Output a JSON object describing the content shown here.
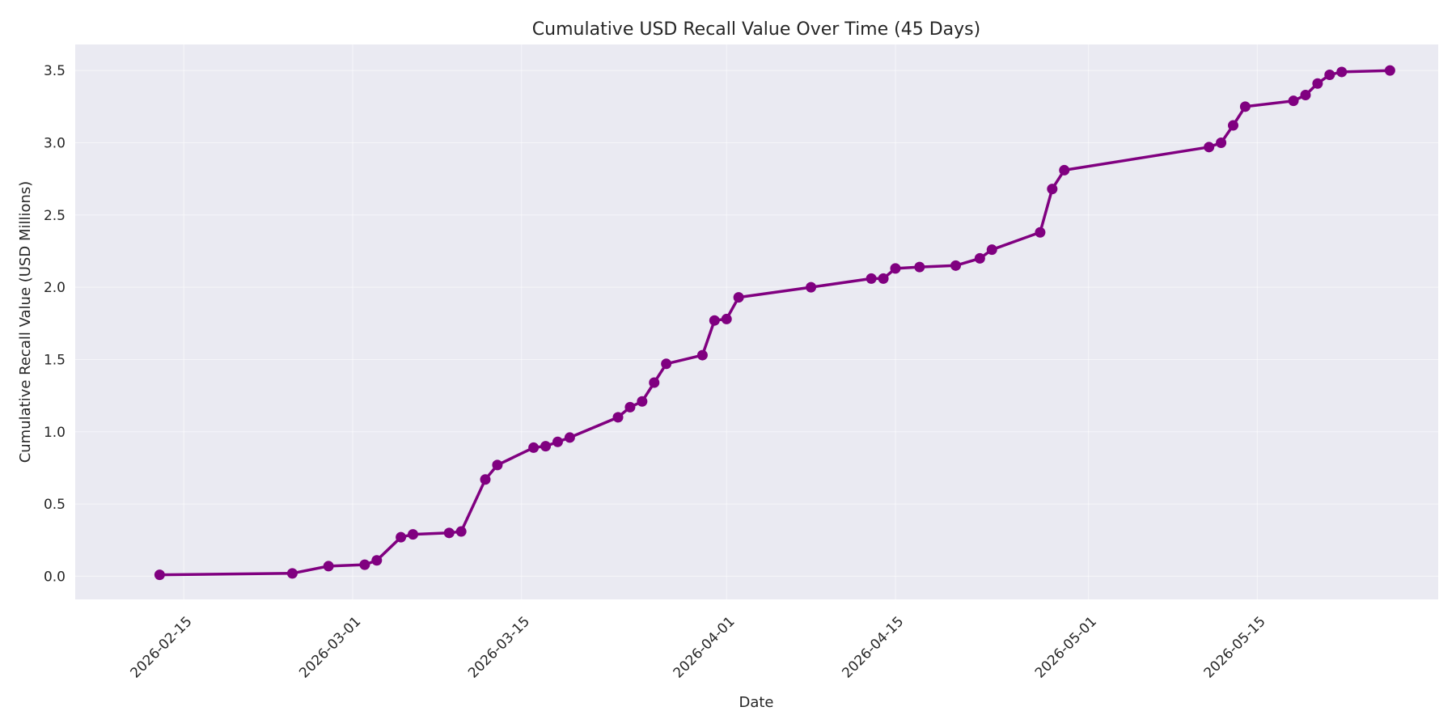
{
  "colors": {
    "series": "#800080",
    "plot_background": "#eaeaf2",
    "grid": "#ffffff",
    "text": "#262626"
  },
  "chart_data": {
    "type": "line",
    "title": "Cumulative USD Recall Value Over Time (45 Days)",
    "xlabel": "Date",
    "ylabel": "Cumulative Recall Value (USD Millions)",
    "grid": true,
    "legend": "none",
    "xlim": [
      "2026-02-06",
      "2026-05-30"
    ],
    "ylim": [
      -0.16,
      3.68
    ],
    "x_ticks": [
      "2026-02-15",
      "2026-03-01",
      "2026-03-15",
      "2026-04-01",
      "2026-04-15",
      "2026-05-01",
      "2026-05-15"
    ],
    "y_ticks": [
      0.0,
      0.5,
      1.0,
      1.5,
      2.0,
      2.5,
      3.0,
      3.5
    ],
    "y_tick_labels": [
      "0.0",
      "0.5",
      "1.0",
      "1.5",
      "2.0",
      "2.5",
      "3.0",
      "3.5"
    ],
    "series": [
      {
        "x": [
          "2026-02-13",
          "2026-02-24",
          "2026-02-27",
          "2026-03-02",
          "2026-03-03",
          "2026-03-05",
          "2026-03-06",
          "2026-03-09",
          "2026-03-10",
          "2026-03-12",
          "2026-03-13",
          "2026-03-16",
          "2026-03-17",
          "2026-03-18",
          "2026-03-19",
          "2026-03-23",
          "2026-03-24",
          "2026-03-25",
          "2026-03-26",
          "2026-03-27",
          "2026-03-30",
          "2026-03-31",
          "2026-04-01",
          "2026-04-02",
          "2026-04-08",
          "2026-04-13",
          "2026-04-14",
          "2026-04-15",
          "2026-04-17",
          "2026-04-20",
          "2026-04-22",
          "2026-04-23",
          "2026-04-27",
          "2026-04-28",
          "2026-04-29",
          "2026-05-11",
          "2026-05-12",
          "2026-05-13",
          "2026-05-14",
          "2026-05-18",
          "2026-05-19",
          "2026-05-20",
          "2026-05-21",
          "2026-05-22",
          "2026-05-26"
        ],
        "y": [
          0.01,
          0.02,
          0.07,
          0.08,
          0.11,
          0.27,
          0.29,
          0.3,
          0.31,
          0.67,
          0.77,
          0.89,
          0.9,
          0.93,
          0.96,
          1.1,
          1.17,
          1.21,
          1.34,
          1.47,
          1.53,
          1.77,
          1.78,
          1.93,
          2.0,
          2.06,
          2.06,
          2.13,
          2.14,
          2.15,
          2.2,
          2.26,
          2.38,
          2.68,
          2.81,
          2.97,
          3.0,
          3.12,
          3.25,
          3.29,
          3.33,
          3.41,
          3.47,
          3.49,
          3.5
        ]
      }
    ]
  }
}
